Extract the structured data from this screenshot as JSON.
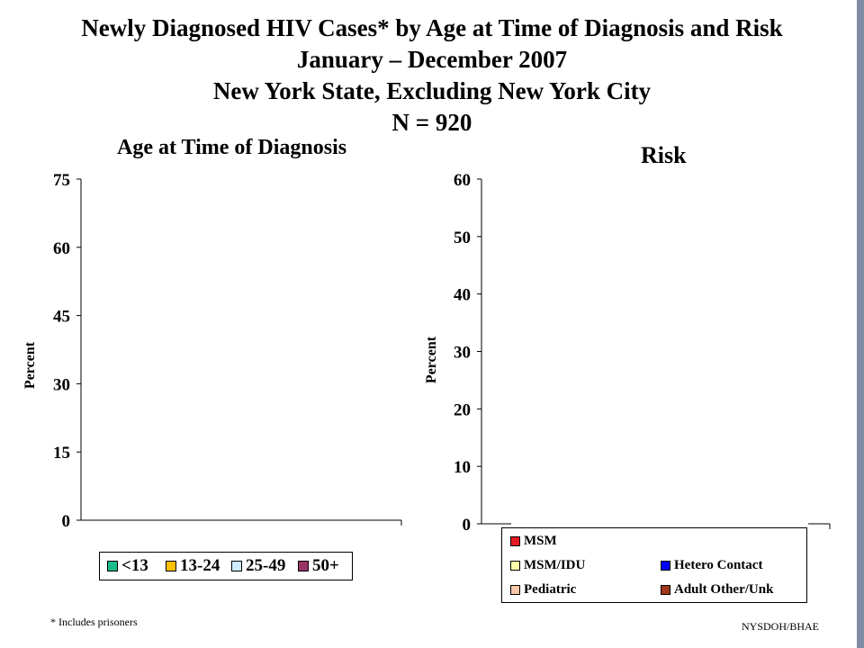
{
  "title_lines": [
    "Newly Diagnosed HIV Cases* by Age at Time of Diagnosis and Risk",
    "January – December 2007",
    "New York State, Excluding New York City",
    "N = 920"
  ],
  "footnote": "* Includes prisoners",
  "source": "NYSDOH/BHAE",
  "chart_data": [
    {
      "type": "bar",
      "title": "Age at Time of Diagnosis",
      "ylabel": "Percent",
      "xlabel": "",
      "ylim": [
        0,
        75
      ],
      "yticks": [
        "0",
        "15",
        "30",
        "45",
        "60",
        "75"
      ],
      "categories": [],
      "series": [
        {
          "name": "<13",
          "color": "#1abc8c",
          "values": []
        },
        {
          "name": "13-24",
          "color": "#ffc000",
          "values": []
        },
        {
          "name": "25-49",
          "color": "#ccecff",
          "values": []
        },
        {
          "name": "50+",
          "color": "#993366",
          "values": []
        }
      ],
      "legend_position": "bottom"
    },
    {
      "type": "bar",
      "title": "Risk",
      "ylabel": "Percent",
      "xlabel": "",
      "ylim": [
        0,
        60
      ],
      "yticks": [
        "0",
        "10",
        "20",
        "30",
        "40",
        "50",
        "60"
      ],
      "categories": [],
      "series": [
        {
          "name": "MSM",
          "color": "#e31b23",
          "values": []
        },
        {
          "name": "MSM/IDU",
          "color": "#ffffaa",
          "values": []
        },
        {
          "name": "Hetero Contact",
          "color": "#0000ff",
          "values": []
        },
        {
          "name": "Pediatric",
          "color": "#f8c8a8",
          "values": []
        },
        {
          "name": "Adult Other/Unk",
          "color": "#a0381c",
          "values": []
        }
      ],
      "legend_position": "bottom"
    }
  ]
}
